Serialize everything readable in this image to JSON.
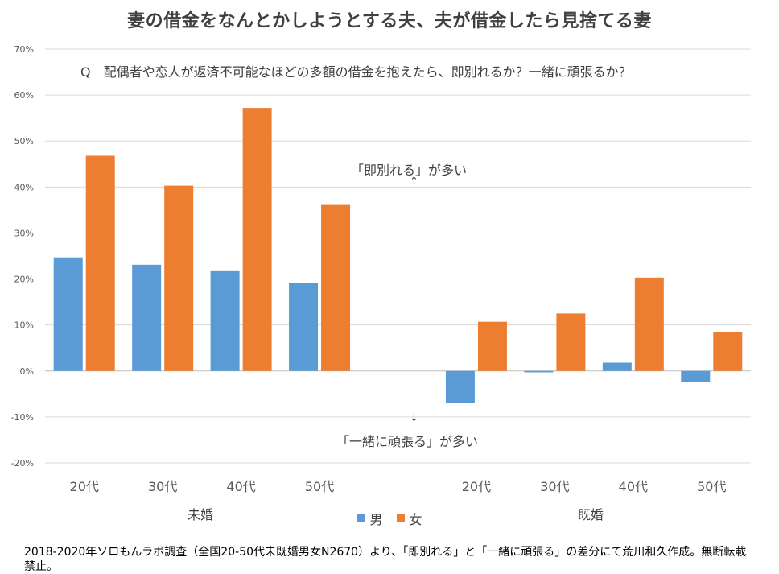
{
  "colors": {
    "male": "#5B9BD5",
    "female": "#ED7D31",
    "grid": "#D9D9D9",
    "axis": "#BFBFBF"
  },
  "chart_data": {
    "type": "bar",
    "title": "妻の借金をなんとかしようとする夫、夫が借金したら見捨てる妻",
    "subtitle": "Q　配偶者や恋人が返済不可能なほどの多額の借金を抱えたら、即別れるか？一緒に頑張るか？",
    "categories": [
      "20代",
      "30代",
      "40代",
      "50代",
      "",
      "20代",
      "30代",
      "40代",
      "50代"
    ],
    "groups": [
      "未婚",
      "既婚"
    ],
    "series": [
      {
        "name": "男",
        "values": [
          24.7,
          23.1,
          21.7,
          19.2,
          null,
          -7.0,
          -0.3,
          1.8,
          -2.4
        ]
      },
      {
        "name": "女",
        "values": [
          46.8,
          40.3,
          57.2,
          36.1,
          null,
          10.7,
          12.5,
          20.3,
          8.4
        ]
      }
    ],
    "ylim": [
      -20,
      70
    ],
    "yticks": [
      "-20%",
      "-10%",
      "0%",
      "10%",
      "20%",
      "30%",
      "40%",
      "50%",
      "60%",
      "70%"
    ],
    "annotations": {
      "top": "「即別れる」が多い",
      "bottom": "「一緒に頑張る」が多い",
      "arrow_up": "↑",
      "arrow_down": "↓"
    },
    "grid": true,
    "legend": "bottom-center"
  },
  "footnote": "2018-2020年ソロもんラボ調査（全国20-50代未既婚男女N2670）より、「即別れる」と「一緒に頑張る」の差分にて荒川和久作成。無断転載禁止。"
}
